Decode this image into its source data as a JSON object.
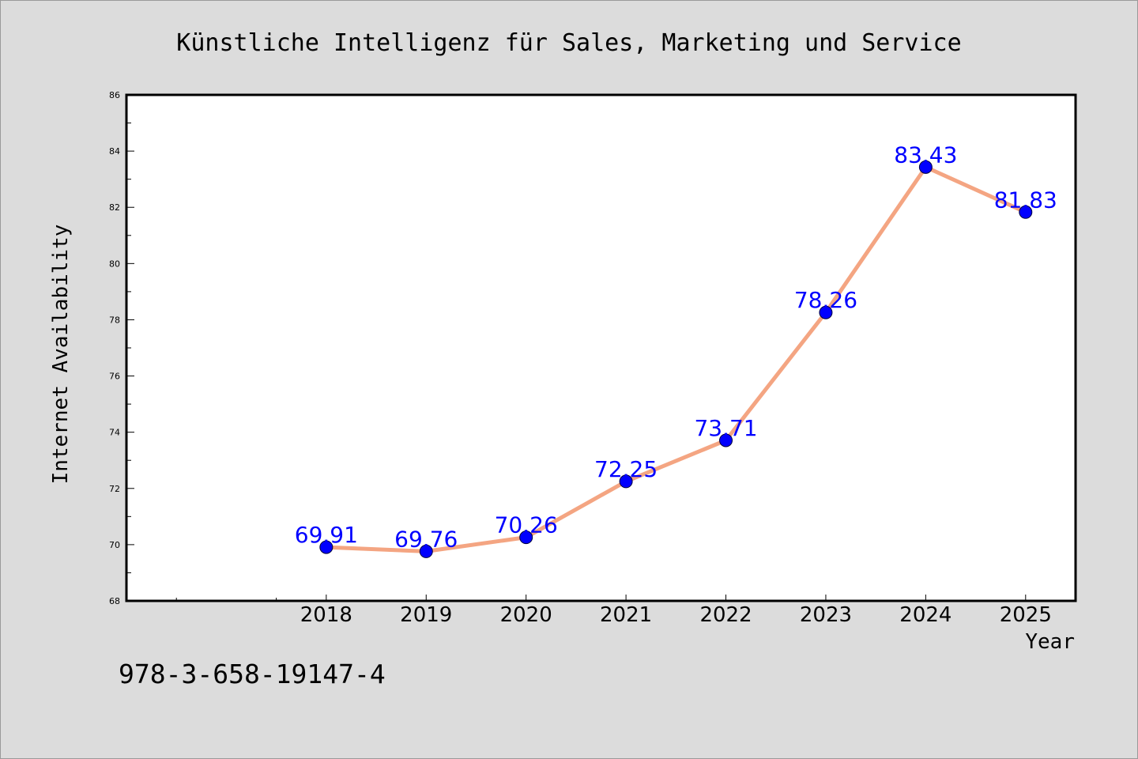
{
  "chart_data": {
    "type": "line",
    "title": "Künstliche Intelligenz für Sales, Marketing und Service",
    "xlabel": "Year",
    "ylabel": "Internet Availability",
    "x": [
      2018,
      2019,
      2020,
      2021,
      2022,
      2023,
      2024,
      2025
    ],
    "x_tick_labels": [
      "2018",
      "2019",
      "2020",
      "2021",
      "2022",
      "2023",
      "2024",
      "2025"
    ],
    "series": [
      {
        "values": [
          69.91,
          69.76,
          70.26,
          72.25,
          73.71,
          78.26,
          83.43,
          81.83
        ],
        "data_labels": [
          "69.91",
          "69.76",
          "70.26",
          "72.25",
          "73.71",
          "78.26",
          "83.43",
          "81.83"
        ],
        "line_color": "#f4a582",
        "marker_color": "#0000ff"
      }
    ],
    "data_label_color": "#0000ff",
    "xlim": [
      2016,
      2025.5
    ],
    "ylim": [
      68,
      86
    ],
    "y_ticks": [
      68,
      70,
      72,
      74,
      76,
      78,
      80,
      82,
      84,
      86
    ],
    "y_tick_labels": [
      "68",
      "70",
      "72",
      "74",
      "76",
      "78",
      "80",
      "82",
      "84",
      "86"
    ],
    "grid": false,
    "legend": "none",
    "annotation": "978-3-658-19147-4",
    "background_color": "#dcdcdc",
    "plot_background_color": "#ffffff"
  }
}
